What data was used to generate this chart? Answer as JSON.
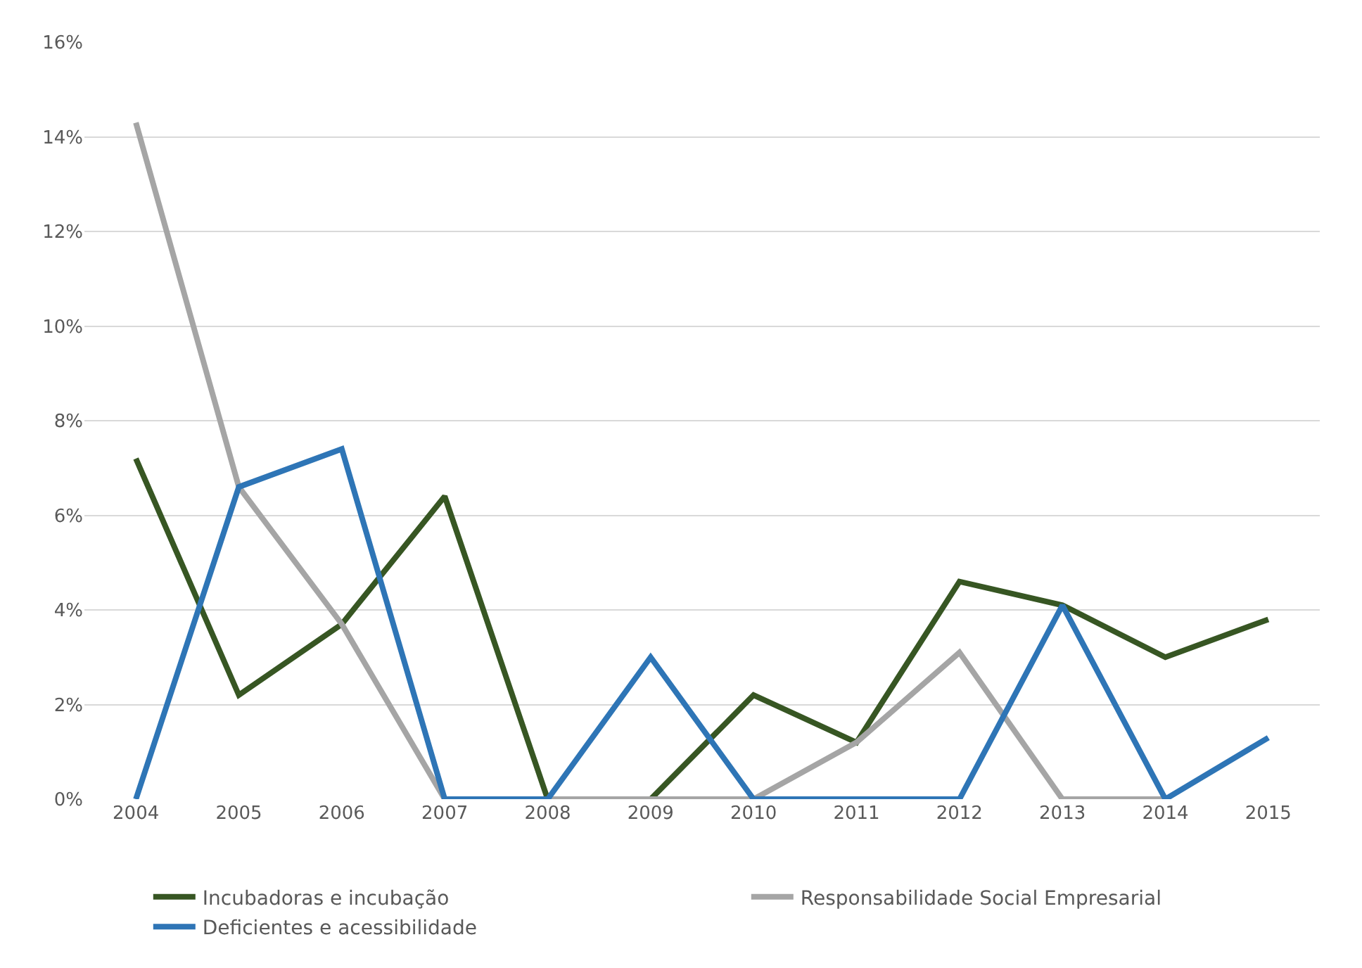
{
  "chart_data": {
    "type": "line",
    "categories": [
      "2004",
      "2005",
      "2006",
      "2007",
      "2008",
      "2009",
      "2010",
      "2011",
      "2012",
      "2013",
      "2014",
      "2015"
    ],
    "series": [
      {
        "name": "Incubadoras e incubação",
        "color": "#375623",
        "values": [
          7.2,
          2.2,
          3.7,
          6.4,
          0,
          0,
          2.2,
          1.2,
          4.6,
          4.1,
          3.0,
          3.8
        ]
      },
      {
        "name": "Responsabilidade Social Empresarial",
        "color": "#a5a5a5",
        "values": [
          14.3,
          6.6,
          3.7,
          0,
          0,
          0,
          0,
          1.2,
          3.1,
          0,
          0,
          null
        ]
      },
      {
        "name": "Deficientes e acessibilidade",
        "color": "#2e75b6",
        "values": [
          0,
          6.6,
          7.4,
          0,
          0,
          3.0,
          0,
          0,
          0,
          4.1,
          0,
          1.3
        ]
      }
    ],
    "ylim": [
      0,
      16
    ],
    "yticks": [
      {
        "value": 0,
        "label": "0%"
      },
      {
        "value": 2,
        "label": "2%"
      },
      {
        "value": 4,
        "label": "4%"
      },
      {
        "value": 6,
        "label": "6%"
      },
      {
        "value": 8,
        "label": "8%"
      },
      {
        "value": 10,
        "label": "10%"
      },
      {
        "value": 12,
        "label": "12%"
      },
      {
        "value": 14,
        "label": "14%"
      },
      {
        "value": 16,
        "label": "16%"
      }
    ],
    "grid": "y",
    "legend": "bottom",
    "marker": "none",
    "line_style": "solid"
  }
}
